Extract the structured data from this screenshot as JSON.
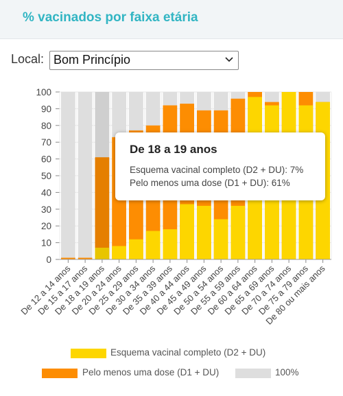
{
  "header": {
    "title": "% vacinados por faixa etária"
  },
  "filter": {
    "label": "Local:",
    "selected": "Bom Princípio"
  },
  "colors": {
    "complete": "#fdd600",
    "one_dose": "#fd8d02",
    "total": "#dedede"
  },
  "chart_data": {
    "type": "bar",
    "categories": [
      "De 12 a 14 anos",
      "De 15 a 17 anos",
      "De 18 a 19 anos",
      "De 20 a 24 anos",
      "De 25 a 29 anos",
      "De 30 a 34 anos",
      "De 35 a 39 anos",
      "De 40 a 44 anos",
      "De 45 a 49 anos",
      "De 50 a 54 anos",
      "De 55 a 59 anos",
      "De 60 a 64 anos",
      "De 65 a 69 anos",
      "De 70 a 74 anos",
      "De 75 a 79 anos",
      "De 80 ou mais anos"
    ],
    "series": [
      {
        "name": "Esquema vacinal completo (D2 + DU)",
        "values": [
          0,
          0,
          7,
          8,
          12,
          17,
          18,
          33,
          32,
          24,
          32,
          97,
          92,
          100,
          92,
          94
        ]
      },
      {
        "name": "Pelo menos uma dose (D1 + DU)",
        "values": [
          1,
          1,
          61,
          73,
          77,
          80,
          92,
          93,
          89,
          89,
          96,
          100,
          94,
          100,
          100,
          94
        ]
      },
      {
        "name": "100%",
        "values": [
          100,
          100,
          100,
          100,
          100,
          100,
          100,
          100,
          100,
          100,
          100,
          100,
          100,
          100,
          100,
          100
        ]
      }
    ],
    "yticks": [
      0,
      10,
      20,
      30,
      40,
      50,
      60,
      70,
      80,
      90,
      100
    ],
    "ylim": [
      0,
      100
    ],
    "grid": true,
    "legend_position": "bottom",
    "highlighted_index": 2
  },
  "tooltip": {
    "title": "De 18 a 19 anos",
    "line1": "Esquema vacinal completo (D2 + DU): 7%",
    "line2": "Pelo menos uma dose (D1 + DU): 61%"
  },
  "legend": {
    "complete": "Esquema vacinal completo (D2 + DU)",
    "one_dose": "Pelo menos uma dose (D1 + DU)",
    "total": "100%"
  }
}
